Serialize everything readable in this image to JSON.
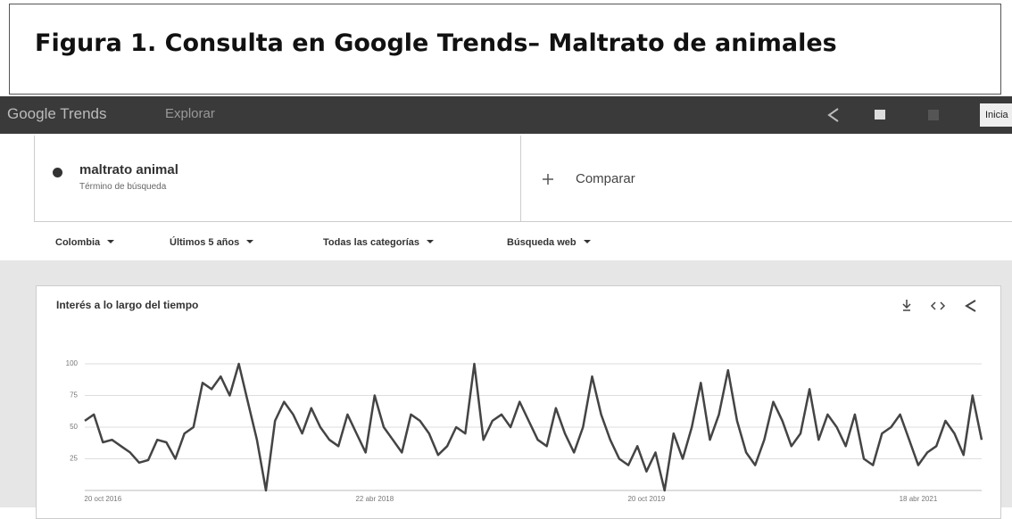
{
  "header": {
    "title": "Figura 1. Consulta en Google Trends– Maltrato de animales"
  },
  "toolbar": {
    "brand": "Google Trends",
    "nav": "Explorar",
    "button": "Inicia"
  },
  "search": {
    "term": "maltrato animal",
    "term_type": "Término de búsqueda",
    "compare": "Comparar"
  },
  "filters": [
    "Colombia",
    "Últimos 5 años",
    "Todas las categorías",
    "Búsqueda web"
  ],
  "chart_data": {
    "type": "line",
    "title": "Interés a lo largo del tiempo",
    "categories": [
      null,
      null,
      "20 oct 2016",
      null,
      null,
      null,
      null,
      null,
      null,
      null,
      null,
      null,
      null,
      null,
      null,
      null,
      null,
      null,
      null,
      null,
      null,
      null,
      null,
      null,
      null,
      null,
      null,
      null,
      null,
      null,
      null,
      null,
      "22 abr 2018",
      null,
      null,
      null,
      null,
      null,
      null,
      null,
      null,
      null,
      null,
      null,
      null,
      null,
      null,
      null,
      null,
      null,
      null,
      null,
      null,
      null,
      null,
      null,
      null,
      null,
      null,
      null,
      null,
      null,
      "20 oct 2019",
      null,
      null,
      null,
      null,
      null,
      null,
      null,
      null,
      null,
      null,
      null,
      null,
      null,
      null,
      null,
      null,
      null,
      null,
      null,
      null,
      null,
      null,
      null,
      null,
      null,
      null,
      null,
      null,
      null,
      "18 abr 2021",
      null,
      null,
      null,
      null,
      null,
      null,
      null
    ],
    "series": [
      {
        "name": "maltrato animal",
        "color": "#444444",
        "values": [
          55,
          60,
          38,
          40,
          35,
          30,
          22,
          24,
          40,
          38,
          25,
          45,
          50,
          85,
          80,
          90,
          75,
          100,
          70,
          40,
          0,
          55,
          70,
          60,
          45,
          65,
          50,
          40,
          35,
          60,
          45,
          30,
          75,
          50,
          40,
          30,
          60,
          55,
          45,
          28,
          35,
          50,
          45,
          100,
          40,
          55,
          60,
          50,
          70,
          55,
          40,
          35,
          65,
          45,
          30,
          50,
          90,
          60,
          40,
          25,
          20,
          35,
          15,
          30,
          0,
          45,
          25,
          50,
          85,
          40,
          60,
          95,
          55,
          30,
          20,
          40,
          70,
          55,
          35,
          45,
          80,
          40,
          60,
          50,
          35,
          60,
          25,
          20,
          45,
          50,
          60,
          40,
          20,
          30,
          35,
          55,
          45,
          28,
          75,
          40
        ]
      }
    ],
    "ylim": [
      0,
      100
    ],
    "yticks": [
      25,
      50,
      75,
      100
    ],
    "grid": true
  }
}
